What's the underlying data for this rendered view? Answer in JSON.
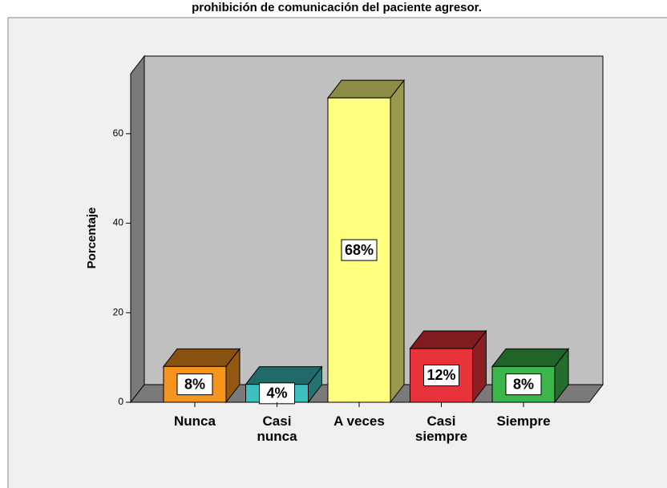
{
  "chart_data": {
    "type": "bar3d",
    "title": "prohibición de comunicación del paciente agresor.",
    "y_label": "Porcentaje",
    "categories": [
      "Nunca",
      "Casi\nnunca",
      "A veces",
      "Casi\nsiempre",
      "Siempre"
    ],
    "values": [
      8,
      4,
      68,
      12,
      8
    ],
    "value_labels": [
      "8%",
      "4%",
      "68%",
      "12%",
      "8%"
    ],
    "colors": [
      "#f7941d",
      "#3cc0c0",
      "#ffff80",
      "#e8333b",
      "#3cb54a"
    ],
    "ylim": [
      0,
      73.4
    ],
    "yticks": [
      0,
      20,
      40,
      60
    ]
  }
}
